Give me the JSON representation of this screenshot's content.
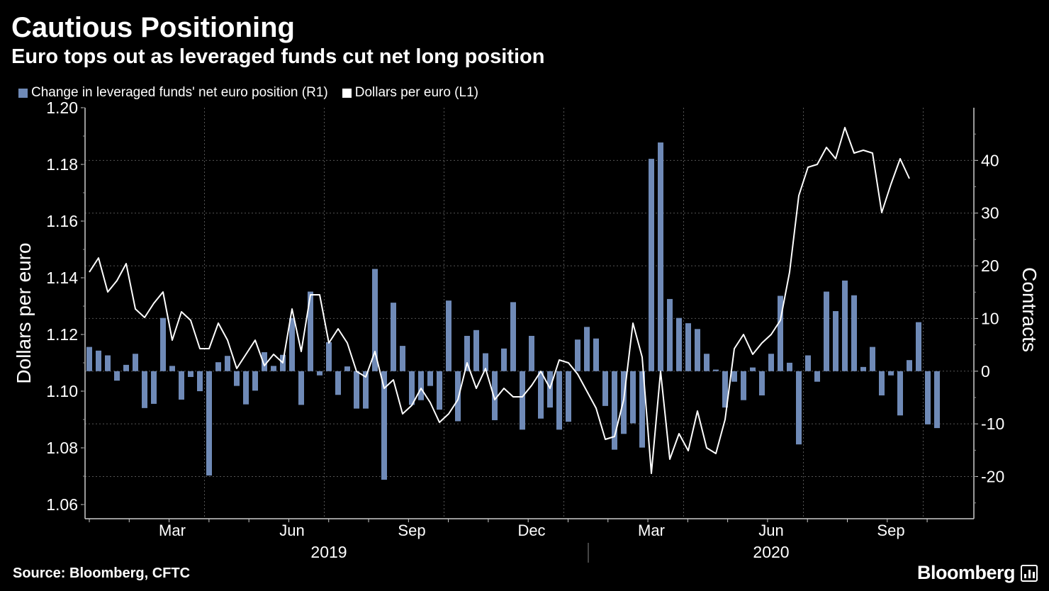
{
  "title": "Cautious Positioning",
  "subtitle": "Euro tops out as leveraged funds cut net long position",
  "source": "Source: Bloomberg, CFTC",
  "brand": "Bloomberg",
  "colors": {
    "bar": "#6f8ab7",
    "line": "#ffffff",
    "background": "#000000",
    "grid": "#666666"
  },
  "chart_data": {
    "type": "bar+line",
    "legend": [
      {
        "name": "Change in leveraged funds' net euro position (R1)",
        "kind": "bar"
      },
      {
        "name": "Dollars per euro (L1)",
        "kind": "line"
      }
    ],
    "ylabel_left": "Dollars per euro",
    "ylabel_right": "Contracts",
    "ylim_left": [
      1.055,
      1.2
    ],
    "ylim_right": [
      -28,
      50
    ],
    "yticks_left": [
      "1.20",
      "1.18",
      "1.16",
      "1.14",
      "1.12",
      "1.10",
      "1.08",
      "1.06"
    ],
    "yticks_left_values": [
      1.2,
      1.18,
      1.16,
      1.14,
      1.12,
      1.1,
      1.08,
      1.06
    ],
    "yticks_right": [
      "40",
      "30",
      "20",
      "10",
      "0",
      "-10",
      "-20"
    ],
    "yticks_right_values": [
      40,
      30,
      20,
      10,
      0,
      -10,
      -20
    ],
    "x_month_labels": [
      "Mar",
      "Jun",
      "Sep",
      "Dec",
      "Mar",
      "Jun",
      "Sep"
    ],
    "x_month_weeks": [
      9,
      22,
      35,
      48,
      61,
      74,
      87
    ],
    "x_year_labels": [
      "2019",
      "2020"
    ],
    "x_year_weeks": [
      26,
      74
    ],
    "x_year_divider_week": 52,
    "gridline_weeks": [
      13,
      26,
      39,
      52,
      65,
      78,
      91
    ],
    "start": "2019-01-08",
    "frequency": "weekly",
    "bars": [
      4.6,
      3.9,
      3.0,
      -1.8,
      1.2,
      3.3,
      -7.0,
      -6.2,
      10.1,
      1.0,
      -5.4,
      -1.1,
      -3.8,
      -19.8,
      1.7,
      2.9,
      -2.8,
      -6.3,
      -3.7,
      3.6,
      1.0,
      3.1,
      10.1,
      -6.4,
      15.1,
      -0.8,
      5.5,
      -4.5,
      0.9,
      -7.1,
      -7.1,
      19.4,
      -20.6,
      13.0,
      4.8,
      -6.4,
      -5.5,
      -2.8,
      -7.3,
      13.4,
      -9.5,
      6.7,
      7.8,
      3.4,
      -9.3,
      4.3,
      13.1,
      -11.1,
      6.7,
      -9.0,
      -6.9,
      -11.1,
      -9.6,
      6.0,
      8.4,
      6.2,
      -6.6,
      -14.9,
      -11.9,
      -9.9,
      -14.5,
      40.3,
      43.4,
      13.7,
      10.1,
      9.1,
      8.0,
      3.3,
      0.3,
      -6.9,
      -2.0,
      -5.5,
      0.7,
      -4.6,
      3.3,
      14.3,
      1.6,
      -13.9,
      3.0,
      -2.0,
      15.1,
      11.4,
      17.2,
      14.4,
      0.8,
      4.6,
      -4.6,
      -0.8,
      -8.4,
      2.1,
      9.3,
      -10.1,
      -10.8
    ],
    "line": [
      1.142,
      1.147,
      1.135,
      1.139,
      1.145,
      1.129,
      1.126,
      1.131,
      1.135,
      1.118,
      1.128,
      1.125,
      1.115,
      1.115,
      1.124,
      1.118,
      1.108,
      1.113,
      1.118,
      1.109,
      1.113,
      1.11,
      1.129,
      1.114,
      1.134,
      1.134,
      1.117,
      1.122,
      1.117,
      1.107,
      1.105,
      1.114,
      1.101,
      1.104,
      1.092,
      1.095,
      1.101,
      1.096,
      1.089,
      1.092,
      1.097,
      1.11,
      1.101,
      1.108,
      1.097,
      1.101,
      1.098,
      1.098,
      1.102,
      1.107,
      1.101,
      1.111,
      1.11,
      1.106,
      1.1,
      1.094,
      1.083,
      1.084,
      1.097,
      1.124,
      1.112,
      1.071,
      1.107,
      1.076,
      1.085,
      1.079,
      1.093,
      1.08,
      1.078,
      1.09,
      1.115,
      1.12,
      1.113,
      1.117,
      1.12,
      1.125,
      1.142,
      1.169,
      1.179,
      1.18,
      1.186,
      1.182,
      1.193,
      1.184,
      1.185,
      1.184,
      1.163,
      1.173,
      1.182,
      1.175
    ]
  }
}
